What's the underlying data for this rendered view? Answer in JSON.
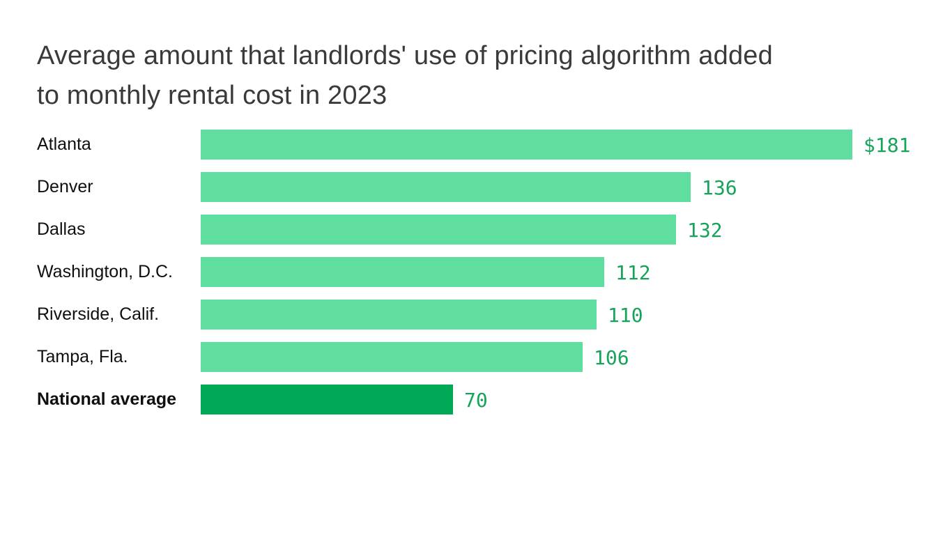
{
  "page": {
    "background_color": "#ffffff"
  },
  "title": {
    "text": "Average amount that landlords' use of pricing algorithm added to monthly rental cost in 2023",
    "lines": [
      "Average amount that landlords' use of pricing algorithm added",
      "to monthly rental cost in 2023"
    ],
    "color": "#3a3a3c"
  },
  "chart_data": {
    "type": "bar",
    "orientation": "horizontal",
    "title": "Average amount that landlords' use of pricing algorithm added to monthly rental cost in 2023",
    "categories": [
      "Atlanta",
      "Denver",
      "Dallas",
      "Washington, D.C.",
      "Riverside, Calif.",
      "Tampa, Fla.",
      "National average"
    ],
    "values": [
      181,
      136,
      132,
      112,
      110,
      106,
      70
    ],
    "value_labels": [
      "$181",
      "136",
      "132",
      "112",
      "110",
      "106",
      "70"
    ],
    "xlim": [
      0,
      181
    ],
    "grid": false,
    "legend": false,
    "axis_ticks_visible": false,
    "bar_color": "#60de9f",
    "highlight_bar_color": "#01a856",
    "value_label_color": "#17a35a",
    "category_label_color": "#0f0f0f",
    "highlight_index": 6,
    "rows": [
      {
        "label": "Atlanta",
        "value": 181,
        "display": "$181",
        "emphasis": false
      },
      {
        "label": "Denver",
        "value": 136,
        "display": "136",
        "emphasis": false
      },
      {
        "label": "Dallas",
        "value": 132,
        "display": "132",
        "emphasis": false
      },
      {
        "label": "Washington, D.C.",
        "value": 112,
        "display": "112",
        "emphasis": false
      },
      {
        "label": "Riverside, Calif.",
        "value": 110,
        "display": "110",
        "emphasis": false
      },
      {
        "label": "Tampa, Fla.",
        "value": 106,
        "display": "106",
        "emphasis": false
      },
      {
        "label": "National average",
        "value": 70,
        "display": "70",
        "emphasis": true
      }
    ]
  }
}
